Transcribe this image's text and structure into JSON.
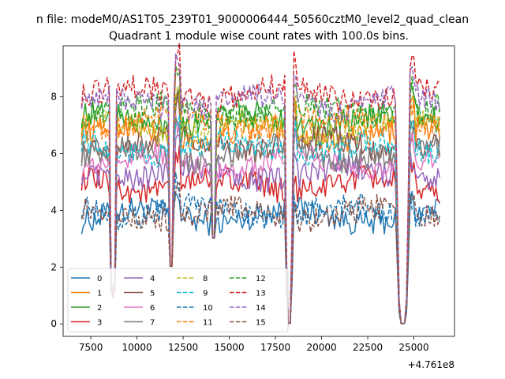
{
  "suptitle": "n file: modeM0/AS1T05_239T01_9000006444_50560cztM0_level2_quad_clean",
  "chart_data": {
    "type": "line",
    "title": "Quadrant 1 module wise count rates with 100.0s bins.",
    "xlabel": "",
    "ylabel": "",
    "x_offset_label": "+4.761e8",
    "xlim": [
      6000,
      27200
    ],
    "ylim": [
      -0.44,
      9.8
    ],
    "xticks": [
      7500,
      10000,
      12500,
      15000,
      17500,
      20000,
      22500,
      25000
    ],
    "xtick_labels": [
      "7500",
      "10000",
      "12500",
      "15000",
      "17500",
      "20000",
      "22500",
      "25000"
    ],
    "yticks": [
      0,
      2,
      4,
      6,
      8
    ],
    "ytick_labels": [
      "0",
      "2",
      "4",
      "6",
      "8"
    ],
    "x_range": [
      7000,
      26400
    ],
    "bin_seconds": 100,
    "drops": [
      {
        "start": 8500,
        "end": 8900,
        "min_value": 0.9
      },
      {
        "start": 11700,
        "end": 12000,
        "min_value": 2.0
      },
      {
        "start": 14000,
        "end": 14300,
        "min_value": 3.0
      },
      {
        "start": 18000,
        "end": 18500,
        "min_value": 0.0
      },
      {
        "start": 24000,
        "end": 24800,
        "min_value": 0.0
      }
    ],
    "spikes": [
      {
        "at": 12200,
        "boost": 1.6
      },
      {
        "at": 18500,
        "boost": 1.0
      },
      {
        "at": 24900,
        "boost": 1.0
      }
    ],
    "legend": {
      "location": "lower-left",
      "columns": 4
    },
    "series": [
      {
        "name": "0",
        "color": "#1f77b4",
        "dash": "solid",
        "mean": 3.8
      },
      {
        "name": "1",
        "color": "#ff7f0e",
        "dash": "solid",
        "mean": 6.7
      },
      {
        "name": "2",
        "color": "#2ca02c",
        "dash": "solid",
        "mean": 7.2
      },
      {
        "name": "3",
        "color": "#d62728",
        "dash": "solid",
        "mean": 4.9
      },
      {
        "name": "4",
        "color": "#9467bd",
        "dash": "solid",
        "mean": 5.3
      },
      {
        "name": "5",
        "color": "#8c564b",
        "dash": "solid",
        "mean": 6.3
      },
      {
        "name": "6",
        "color": "#e377c2",
        "dash": "solid",
        "mean": 5.7
      },
      {
        "name": "7",
        "color": "#7f7f7f",
        "dash": "solid",
        "mean": 6.0
      },
      {
        "name": "8",
        "color": "#bcbd22",
        "dash": "dashed",
        "mean": 6.9
      },
      {
        "name": "9",
        "color": "#17becf",
        "dash": "dashed",
        "mean": 6.2
      },
      {
        "name": "10",
        "color": "#1f77b4",
        "dash": "dashed",
        "mean": 4.0
      },
      {
        "name": "11",
        "color": "#ff7f0e",
        "dash": "dashed",
        "mean": 7.1
      },
      {
        "name": "12",
        "color": "#2ca02c",
        "dash": "dashed",
        "mean": 7.5
      },
      {
        "name": "13",
        "color": "#d62728",
        "dash": "dashed",
        "mean": 8.1
      },
      {
        "name": "14",
        "color": "#9467bd",
        "dash": "dashed",
        "mean": 7.8
      },
      {
        "name": "15",
        "color": "#8c564b",
        "dash": "dashed",
        "mean": 3.9
      }
    ]
  }
}
